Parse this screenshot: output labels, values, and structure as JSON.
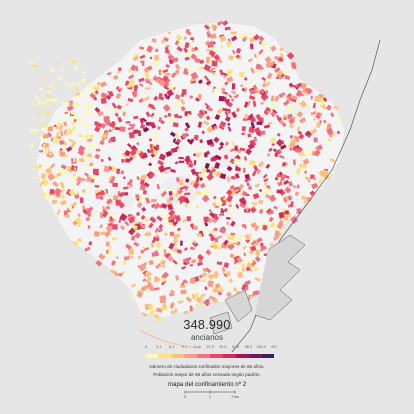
{
  "headline": {
    "total": "348.990",
    "unit": "ancianos"
  },
  "legend": {
    "ticks": [
      "0",
      "3.1",
      "6.1",
      "9.1",
      "14.6",
      "22.3",
      "32.5",
      "51.6",
      "86.3",
      "150.0",
      "421"
    ],
    "colors": [
      "#fff9b0",
      "#fde27a",
      "#fcc07a",
      "#f79a86",
      "#f2707f",
      "#e84867",
      "#cf2a58",
      "#a01553",
      "#6f1a57",
      "#3a1f63"
    ],
    "note_line1": "Número de ciudadanos confinados mayores de 65 años.",
    "note_line2": "Población mayor de 65 años censada según padrón."
  },
  "title": "mapa del confinamiento nº 2",
  "scale": {
    "labels": [
      "0",
      "1",
      "2 km"
    ]
  },
  "colors": {
    "background": "#e6e6e6",
    "land": "#f4f4f4",
    "road": "#ffffff",
    "coast": "#555555",
    "port": "#d6d6d6"
  }
}
